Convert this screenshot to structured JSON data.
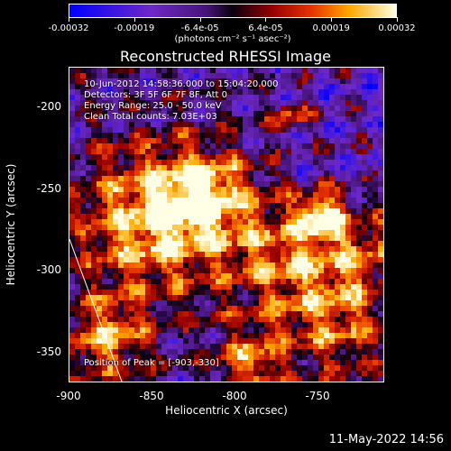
{
  "colorbar": {
    "tick_labels": [
      "-0.00032",
      "-0.00019",
      "-6.4e-05",
      "6.4e-05",
      "0.00019",
      "0.00032"
    ],
    "unit_label": "(photons cm⁻² s⁻¹ asec⁻²)",
    "range": [
      -0.00032,
      0.00032
    ]
  },
  "chart_data": {
    "type": "heatmap",
    "title": "Reconstructed RHESSI Image",
    "xlabel": "Heliocentric X (arcsec)",
    "ylabel": "Heliocentric Y (arcsec)",
    "xlim": [
      -900,
      -808
    ],
    "ylim": [
      -368,
      -175
    ],
    "x_ticks": [
      "-900",
      "-850",
      "-800",
      "-750"
    ],
    "y_ticks": [
      "-200",
      "-250",
      "-300",
      "-350"
    ],
    "x_tick_values": [
      -900,
      -850,
      -800,
      -750
    ],
    "y_tick_values": [
      -200,
      -250,
      -300,
      -350
    ],
    "annotations": {
      "time": "10-Jun-2012 14:58:36.000 to 15:04:20.000",
      "detectors": "Detectors: 3F 5F 6F 7F 8F, Att 0",
      "energy": "Energy Range: 25.0 - 50.0 keV",
      "clean": "Clean    Total counts: 7.03E+03",
      "peak": "Position of Peak = [-903,-330]"
    },
    "peak_position": [
      -903,
      -330
    ],
    "limb": "white diagonal line marking the solar limb"
  },
  "footer": {
    "date": "11-May-2022 14:56"
  }
}
